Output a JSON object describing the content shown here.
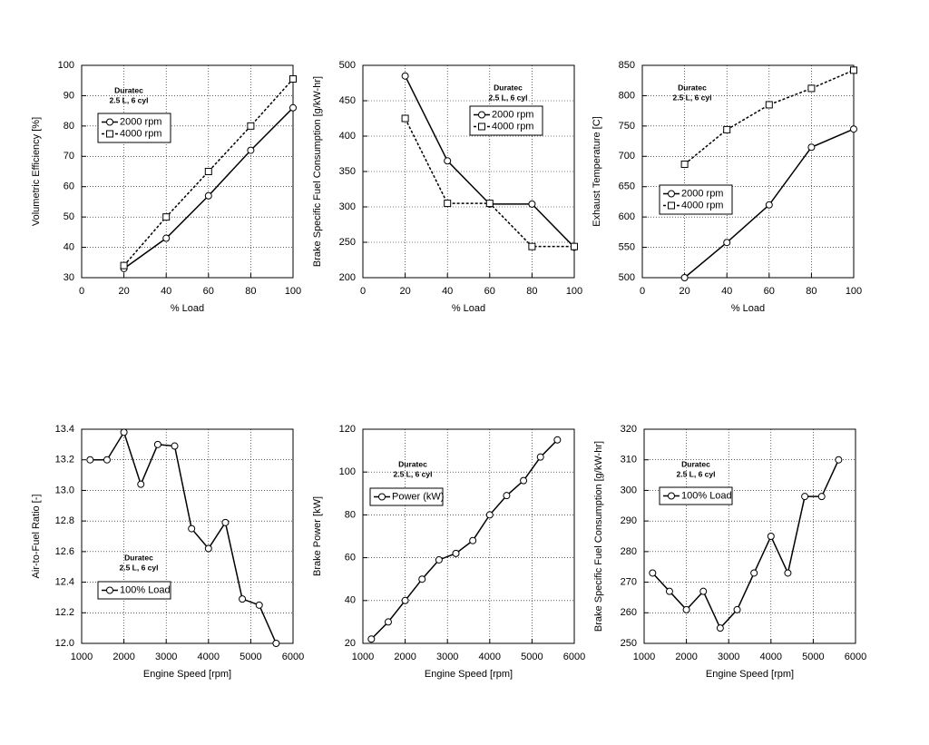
{
  "chart_data": [
    {
      "type": "line",
      "x_label": "% Load",
      "y_label": "Volumetric Efficiency [%]",
      "annotation": [
        "Duratec",
        "2.5 L, 6 cyl"
      ],
      "x": [
        20,
        40,
        60,
        80,
        100
      ],
      "xlim": [
        0,
        100
      ],
      "xticks": [
        0,
        20,
        40,
        60,
        80,
        100
      ],
      "ylim": [
        30,
        100
      ],
      "yticks": [
        30,
        40,
        50,
        60,
        70,
        80,
        90,
        100
      ],
      "grid": true,
      "series": [
        {
          "name": "2000 rpm",
          "color": "#000000",
          "marker": "circle",
          "line_style": "solid",
          "values": [
            33,
            43,
            57,
            72,
            86
          ]
        },
        {
          "name": "4000 rpm",
          "color": "#000000",
          "marker": "square",
          "line_style": "dashed",
          "values": [
            34,
            50,
            65,
            80,
            95.5
          ]
        }
      ]
    },
    {
      "type": "line",
      "x_label": "% Load",
      "y_label": "Brake Specific Fuel Consumption [g/kW-hr]",
      "annotation": [
        "Duratec",
        "2.5 L, 6 cyl"
      ],
      "x": [
        20,
        40,
        60,
        80,
        100
      ],
      "xlim": [
        0,
        100
      ],
      "xticks": [
        0,
        20,
        40,
        60,
        80,
        100
      ],
      "ylim": [
        200,
        500
      ],
      "yticks": [
        200,
        250,
        300,
        350,
        400,
        450,
        500
      ],
      "grid": true,
      "series": [
        {
          "name": "2000 rpm",
          "color": "#000000",
          "marker": "circle",
          "line_style": "solid",
          "values": [
            485,
            365,
            304,
            304,
            243
          ]
        },
        {
          "name": "4000 rpm",
          "color": "#000000",
          "marker": "square",
          "line_style": "dashed",
          "values": [
            425,
            305,
            305,
            244,
            244
          ]
        }
      ]
    },
    {
      "type": "line",
      "x_label": "% Load",
      "y_label": "Exhaust Temperature [C]",
      "annotation": [
        "Duratec",
        "2.5 L, 6 cyl"
      ],
      "x": [
        20,
        40,
        60,
        80,
        100
      ],
      "xlim": [
        0,
        100
      ],
      "xticks": [
        0,
        20,
        40,
        60,
        80,
        100
      ],
      "ylim": [
        500,
        850
      ],
      "yticks": [
        500,
        550,
        600,
        650,
        700,
        750,
        800,
        850
      ],
      "grid": true,
      "series": [
        {
          "name": "2000 rpm",
          "color": "#000000",
          "marker": "circle",
          "line_style": "solid",
          "values": [
            500,
            558,
            620,
            715,
            745
          ]
        },
        {
          "name": "4000 rpm",
          "color": "#000000",
          "marker": "square",
          "line_style": "dashed",
          "values": [
            687,
            744,
            785,
            812,
            842
          ]
        }
      ]
    },
    {
      "type": "line",
      "x_label": "Engine Speed [rpm]",
      "y_label": "Air-to-Fuel Ratio [-]",
      "annotation": [
        "Duratec",
        "2.5 L, 6 cyl"
      ],
      "x": [
        1200,
        1600,
        2000,
        2400,
        2800,
        3200,
        3600,
        4000,
        4400,
        4800,
        5200,
        5600
      ],
      "xlim": [
        1000,
        6000
      ],
      "xticks": [
        1000,
        2000,
        3000,
        4000,
        5000,
        6000
      ],
      "ylim": [
        12,
        13.4
      ],
      "yticks": [
        {
          "value": 12,
          "label": "12.0"
        },
        12.2,
        12.4,
        12.6,
        12.8,
        {
          "value": 13,
          "label": "13.0"
        },
        13.2,
        13.4
      ],
      "grid": true,
      "series": [
        {
          "name": "100% Load",
          "color": "#000000",
          "marker": "circle",
          "line_style": "solid",
          "values": [
            13.2,
            13.2,
            13.38,
            13.04,
            13.3,
            13.29,
            12.75,
            12.62,
            12.79,
            12.29,
            12.25,
            12.0
          ]
        }
      ]
    },
    {
      "type": "line",
      "x_label": "Engine Speed [rpm]",
      "y_label": "Brake Power [kW]",
      "annotation": [
        "Duratec",
        "2.5 L, 6 cyl"
      ],
      "x": [
        1200,
        1600,
        2000,
        2400,
        2800,
        3200,
        3600,
        4000,
        4400,
        4800,
        5200,
        5600
      ],
      "xlim": [
        1000,
        6000
      ],
      "xticks": [
        1000,
        2000,
        3000,
        4000,
        5000,
        6000
      ],
      "ylim": [
        20,
        120
      ],
      "yticks": [
        20,
        40,
        60,
        80,
        100,
        120
      ],
      "grid": true,
      "series": [
        {
          "name": "Power (kW)",
          "color": "#000000",
          "marker": "circle",
          "line_style": "solid",
          "values": [
            22,
            30,
            40,
            50,
            59,
            62,
            68,
            80,
            89,
            96,
            107,
            115
          ]
        }
      ]
    },
    {
      "type": "line",
      "x_label": "Engine Speed [rpm]",
      "y_label": "Brake Specific Fuel Consumption [g/kW-hr]",
      "annotation": [
        "Duratec",
        "2.5 L, 6 cyl"
      ],
      "x": [
        1200,
        1600,
        2000,
        2400,
        2800,
        3200,
        3600,
        4000,
        4400,
        4800,
        5200,
        5600
      ],
      "xlim": [
        1000,
        6000
      ],
      "xticks": [
        1000,
        2000,
        3000,
        4000,
        5000,
        6000
      ],
      "ylim": [
        250,
        320
      ],
      "yticks": [
        250,
        260,
        270,
        280,
        290,
        300,
        310,
        320
      ],
      "grid": true,
      "series": [
        {
          "name": "100% Load",
          "color": "#000000",
          "marker": "circle",
          "line_style": "solid",
          "values": [
            273,
            267,
            261,
            267,
            255,
            261,
            273,
            285,
            273,
            298,
            298,
            310
          ]
        }
      ]
    }
  ]
}
